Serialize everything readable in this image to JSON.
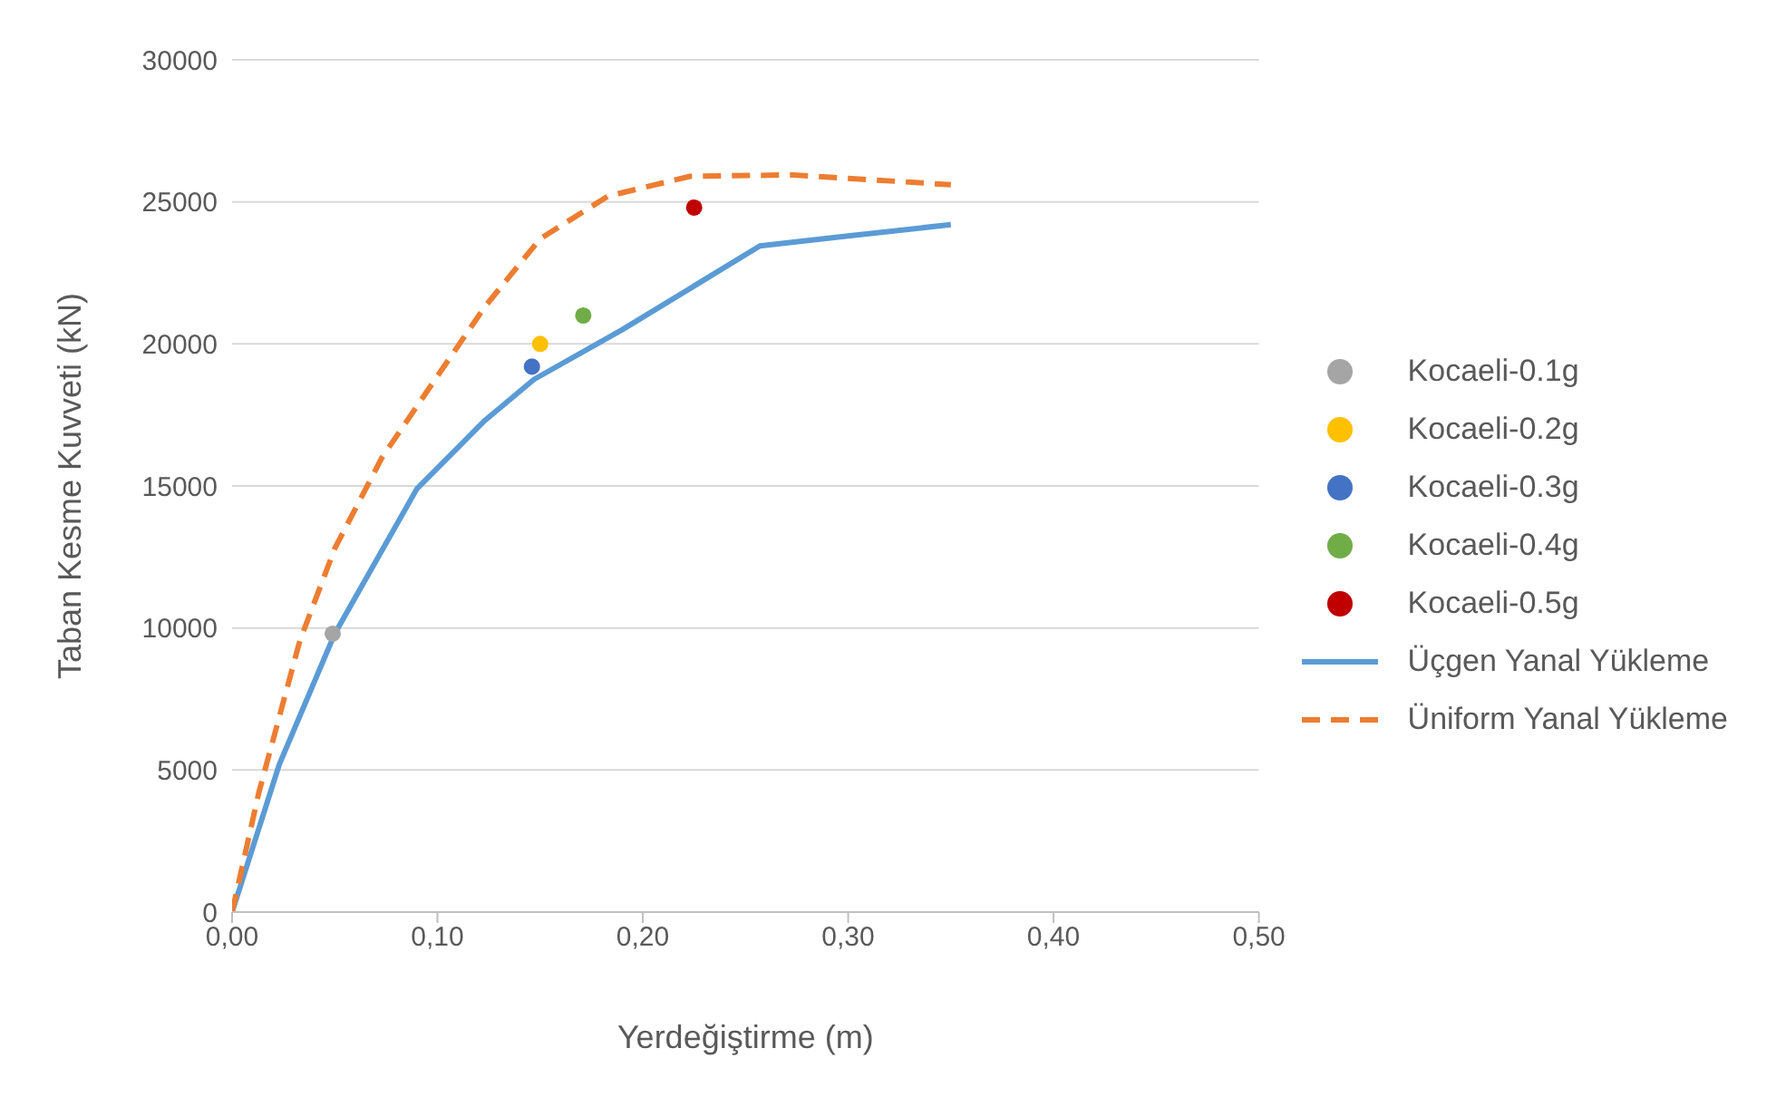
{
  "chart_data": {
    "type": "scatter",
    "xlabel": "Yerdeğiştirme (m)",
    "ylabel": "Taban Kesme Kuvveti (kN)",
    "xlim": [
      0,
      0.5
    ],
    "xticks": [
      {
        "value": 0,
        "label": "0,00"
      },
      {
        "value": 0.1,
        "label": "0,10"
      },
      {
        "value": 0.2,
        "label": "0,20"
      },
      {
        "value": 0.3,
        "label": "0,30"
      },
      {
        "value": 0.4,
        "label": "0,40"
      },
      {
        "value": 0.5,
        "label": "0,50"
      }
    ],
    "ylim": [
      0,
      30000
    ],
    "yticks": [
      0,
      5000,
      10000,
      15000,
      20000,
      25000,
      30000
    ],
    "grid": "y",
    "legend": "right",
    "series": [
      {
        "name": "Kocaeli-0.1g",
        "marker": "circle",
        "color": "#a5a5a5",
        "x": [
          0.049
        ],
        "values": [
          9800
        ]
      },
      {
        "name": "Kocaeli-0.2g",
        "marker": "circle",
        "color": "#ffc000",
        "x": [
          0.15
        ],
        "values": [
          20000
        ]
      },
      {
        "name": "Kocaeli-0.3g",
        "marker": "circle",
        "color": "#4472c4",
        "x": [
          0.146
        ],
        "values": [
          19200
        ]
      },
      {
        "name": "Kocaeli-0.4g",
        "marker": "circle",
        "color": "#70ad47",
        "x": [
          0.171
        ],
        "values": [
          21000
        ]
      },
      {
        "name": "Kocaeli-0.5g",
        "marker": "circle",
        "color": "#c00000",
        "x": [
          0.225
        ],
        "values": [
          24800
        ]
      },
      {
        "name": "Üçgen Yanal Yükleme",
        "type": "line",
        "color": "#5b9bd5",
        "line_style": "solid",
        "marker": "none",
        "x": [
          0,
          0.023,
          0.05,
          0.09,
          0.123,
          0.147,
          0.19,
          0.257,
          0.3,
          0.35
        ],
        "values": [
          0,
          5200,
          9800,
          14900,
          17300,
          18750,
          20500,
          23450,
          23800,
          24200
        ]
      },
      {
        "name": "Üniform Yanal Yükleme",
        "type": "line",
        "color": "#ed7d31",
        "line_style": "dashed",
        "marker": "none",
        "x": [
          0,
          0.013,
          0.033,
          0.05,
          0.073,
          0.097,
          0.123,
          0.15,
          0.183,
          0.223,
          0.273,
          0.34,
          0.35
        ],
        "values": [
          0,
          4200,
          9550,
          12800,
          16000,
          18550,
          21300,
          23700,
          25200,
          25900,
          25950,
          25650,
          25600
        ]
      }
    ]
  }
}
